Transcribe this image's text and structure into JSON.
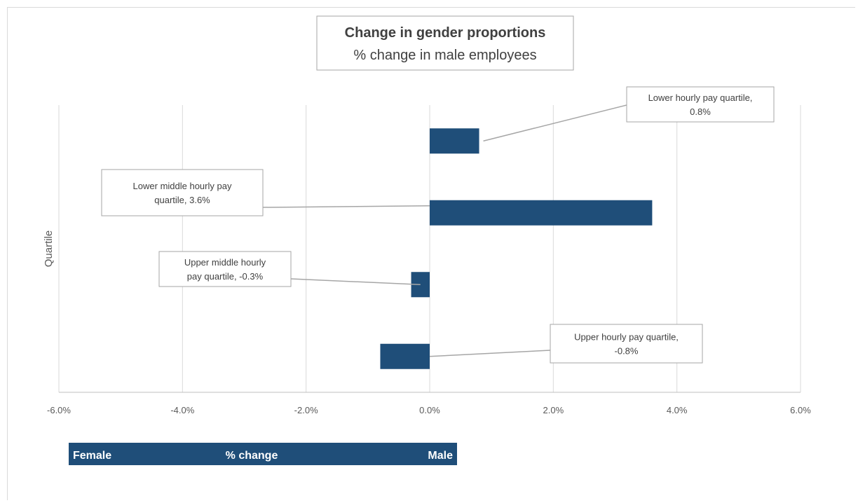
{
  "chart_data": {
    "type": "bar",
    "orientation": "horizontal",
    "title": "Change in gender proportions",
    "subtitle": "% change in male employees",
    "ylabel": "Quartile",
    "xlim": [
      -6.0,
      6.0
    ],
    "x_ticks": [
      "-6.0%",
      "-4.0%",
      "-2.0%",
      "0.0%",
      "2.0%",
      "4.0%",
      "6.0%"
    ],
    "x_tick_values": [
      -6,
      -4,
      -2,
      0,
      2,
      4,
      6
    ],
    "grid": true,
    "bar_color": "#1f4e79",
    "categories": [
      "Lower hourly pay quartile",
      "Lower middle hourly pay quartile",
      "Upper middle hourly pay quartile",
      "Upper hourly pay quartile"
    ],
    "values": [
      0.8,
      3.6,
      -0.3,
      -0.8
    ],
    "annotations": [
      [
        "Lower hourly pay quartile,",
        "0.8%"
      ],
      [
        "Lower middle hourly pay",
        "quartile, 3.6%"
      ],
      [
        "Upper middle hourly",
        "pay quartile, -0.3%"
      ],
      [
        "Upper hourly pay quartile,",
        "-0.8%"
      ]
    ],
    "banner": {
      "left": "Female",
      "center": "% change",
      "right": "Male"
    }
  }
}
